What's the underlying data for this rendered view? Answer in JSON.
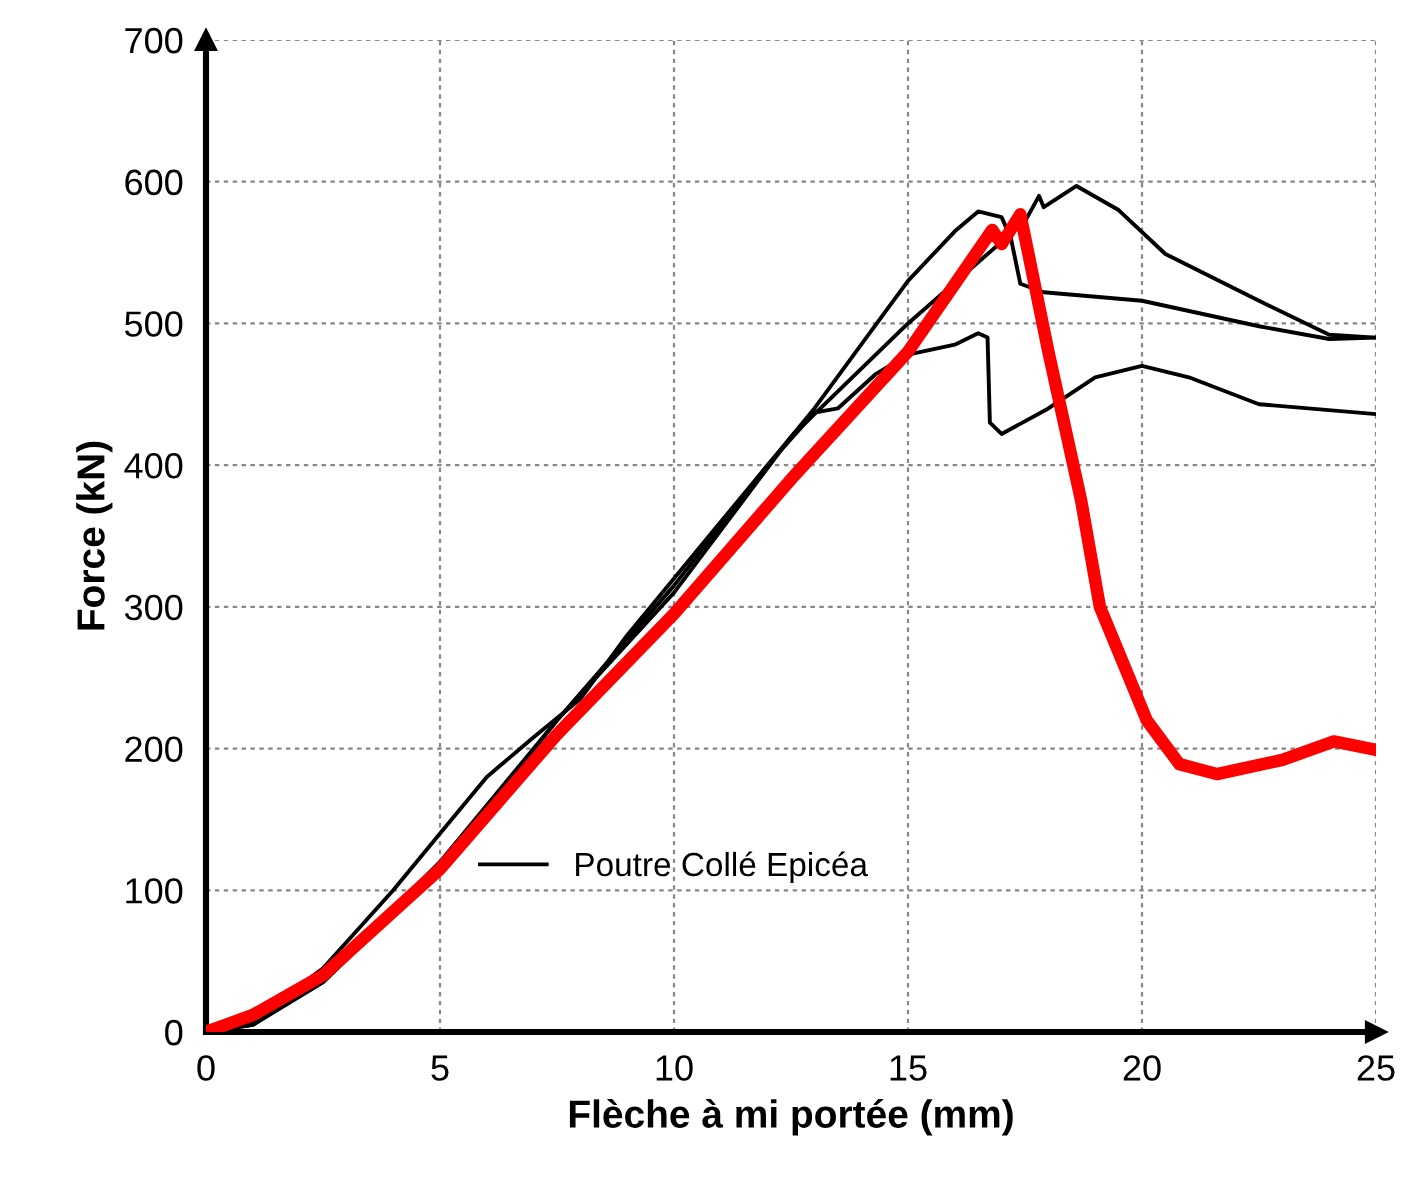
{
  "chart_data": {
    "type": "line",
    "xlabel": "Flèche à mi portée (mm)",
    "ylabel": "Force (kN)",
    "xlim": [
      0,
      25
    ],
    "ylim": [
      0,
      700
    ],
    "xticks": [
      0,
      5,
      10,
      15,
      20,
      25
    ],
    "yticks": [
      0,
      100,
      200,
      300,
      400,
      500,
      600,
      700
    ],
    "grid": true,
    "legend": "bottom",
    "line_style": "solid",
    "marker": "none",
    "series": [
      {
        "name": "Poutre Collé Epicéa",
        "color": "#000000",
        "x": [
          0,
          1,
          2.5,
          4,
          5,
          6,
          7,
          8,
          9,
          10,
          11,
          12,
          13,
          14,
          15,
          16,
          16.5,
          17,
          17.2,
          17.4,
          17.9,
          20,
          22.5,
          24,
          25
        ],
        "values": [
          0,
          8,
          45,
          100,
          140,
          180,
          208,
          235,
          280,
          320,
          360,
          400,
          440,
          485,
          530,
          565,
          579,
          575,
          560,
          528,
          522,
          516,
          498,
          489,
          490
        ]
      },
      {
        "color": "#000000",
        "x": [
          0,
          1,
          2.5,
          5,
          7.5,
          10,
          12.5,
          15,
          17.5,
          17.8,
          17.9,
          18.6,
          19.5,
          20.5,
          22.5,
          24,
          25
        ],
        "values": [
          0,
          5,
          35,
          115,
          220,
          310,
          420,
          500,
          572,
          590,
          582,
          597,
          580,
          549,
          516,
          492,
          490
        ]
      },
      {
        "color": "#000000",
        "x": [
          0,
          1,
          2.5,
          5,
          7.5,
          10,
          12,
          13,
          13.5,
          14.3,
          15,
          16,
          16.5,
          16.7,
          16.75,
          17,
          18,
          19,
          20,
          21,
          22.5,
          25
        ],
        "values": [
          0,
          5,
          38,
          120,
          220,
          315,
          400,
          437,
          440,
          464,
          478,
          485,
          493,
          490,
          430,
          422,
          440,
          462,
          470,
          462,
          443,
          436
        ]
      },
      {
        "color": "#ff0000",
        "x": [
          0,
          1,
          2.5,
          5,
          7.5,
          10,
          12.5,
          15,
          16.8,
          17.0,
          17.4,
          18.0,
          18.7,
          19.1,
          20.1,
          20.8,
          21.6,
          23,
          24.1,
          25
        ],
        "values": [
          0,
          12,
          40,
          115,
          210,
          295,
          390,
          480,
          566,
          556,
          577,
          480,
          375,
          300,
          220,
          189,
          182,
          192,
          205,
          199
        ]
      }
    ]
  }
}
